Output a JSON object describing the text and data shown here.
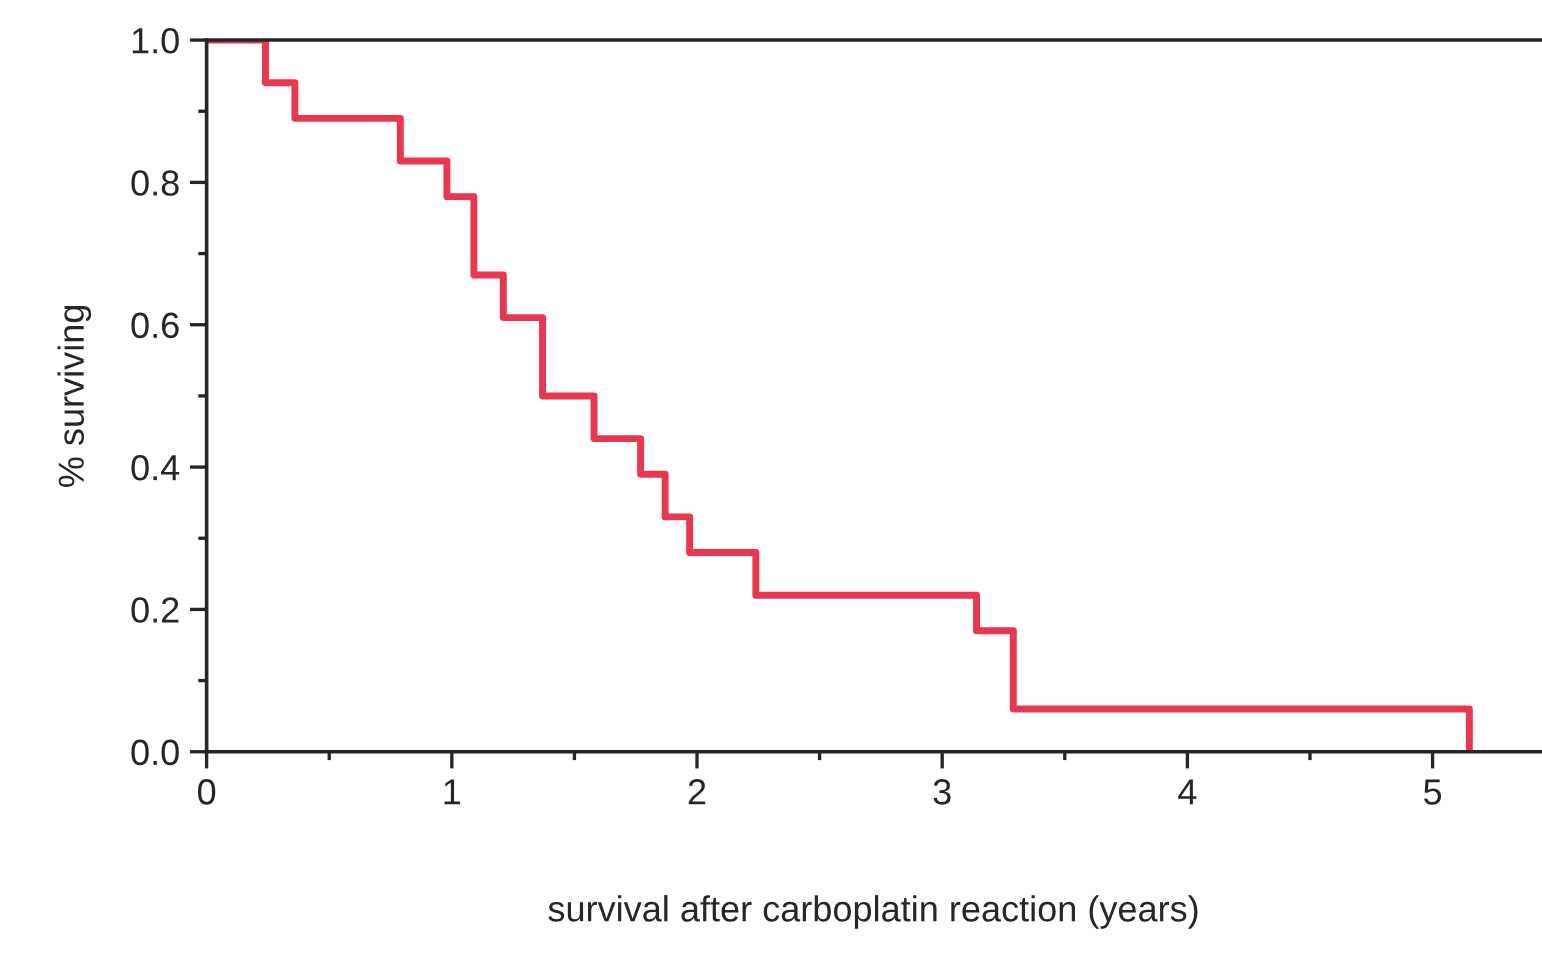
{
  "chart_data": {
    "type": "step",
    "xlabel": "survival after carboplatin reaction (years)",
    "ylabel": "% surviving",
    "series": [
      {
        "color": "#e8374f",
        "x": [
          0,
          0.24,
          0.36,
          0.79,
          0.98,
          1.09,
          1.21,
          1.37,
          1.58,
          1.77,
          1.87,
          1.97,
          2.24,
          3.14,
          3.29,
          5.15
        ],
        "values": [
          1.0,
          0.94,
          0.89,
          0.83,
          0.78,
          0.67,
          0.61,
          0.5,
          0.44,
          0.39,
          0.33,
          0.28,
          0.22,
          0.17,
          0.06,
          0.0
        ]
      }
    ],
    "xlim": [
      0,
      5.44
    ],
    "ylim": [
      0,
      1.0
    ],
    "xticks": [
      0,
      {
        "value": 0.5,
        "label": null
      },
      1,
      {
        "value": 1.5,
        "label": null
      },
      2,
      {
        "value": 2.5,
        "label": null
      },
      3,
      {
        "value": 3.5,
        "label": null
      },
      4,
      {
        "value": 4.5,
        "label": null
      },
      5
    ],
    "yticks": [
      {
        "value": 0,
        "label": "0.0"
      },
      {
        "value": 0.1,
        "label": null
      },
      {
        "value": 0.2,
        "label": "0.2"
      },
      {
        "value": 0.3,
        "label": null
      },
      {
        "value": 0.4,
        "label": "0.4"
      },
      {
        "value": 0.5,
        "label": null
      },
      {
        "value": 0.6,
        "label": "0.6"
      },
      {
        "value": 0.7,
        "label": null
      },
      {
        "value": 0.8,
        "label": "0.8"
      },
      {
        "value": 0.9,
        "label": null
      },
      {
        "value": 1.0,
        "label": "1.0"
      }
    ],
    "grid": false,
    "legend": false,
    "line_style": "solid"
  }
}
